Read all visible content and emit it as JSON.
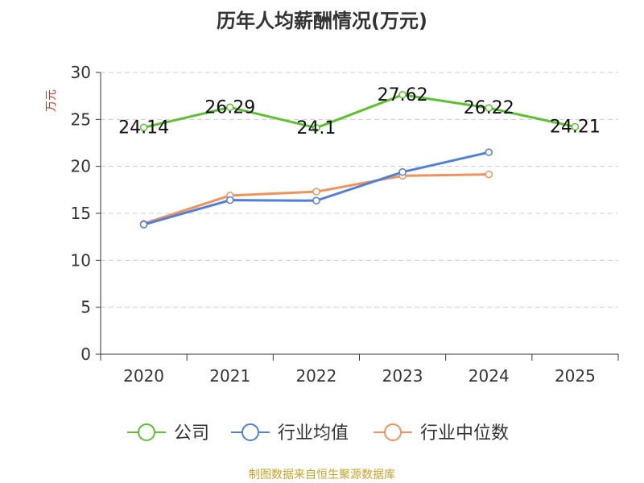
{
  "chart_data": {
    "type": "line",
    "title": "历年人均薪酬情况(万元)",
    "ylabel": "万元",
    "xlabel": "",
    "categories": [
      "2020",
      "2021",
      "2022",
      "2023",
      "2024",
      "2025"
    ],
    "ylim": [
      0,
      30
    ],
    "yticks": [
      0,
      5,
      10,
      15,
      20,
      25,
      30
    ],
    "grid": true,
    "legend_position": "bottom",
    "series": [
      {
        "name": "公司",
        "color": "#5cc12f",
        "values": [
          24.14,
          26.29,
          24.1,
          27.62,
          26.22,
          24.21
        ],
        "labels": [
          "24.14",
          "26.29",
          "24.1",
          "27.62",
          "26.22",
          "24.21"
        ]
      },
      {
        "name": "行业均值",
        "color": "#4f7fdb",
        "values": [
          13.8,
          16.4,
          16.35,
          19.4,
          21.5,
          null
        ]
      },
      {
        "name": "行业中位数",
        "color": "#f0925a",
        "values": [
          13.9,
          16.9,
          17.3,
          19.0,
          19.15,
          null
        ]
      }
    ]
  },
  "source": "制图数据来自恒生聚源数据库"
}
